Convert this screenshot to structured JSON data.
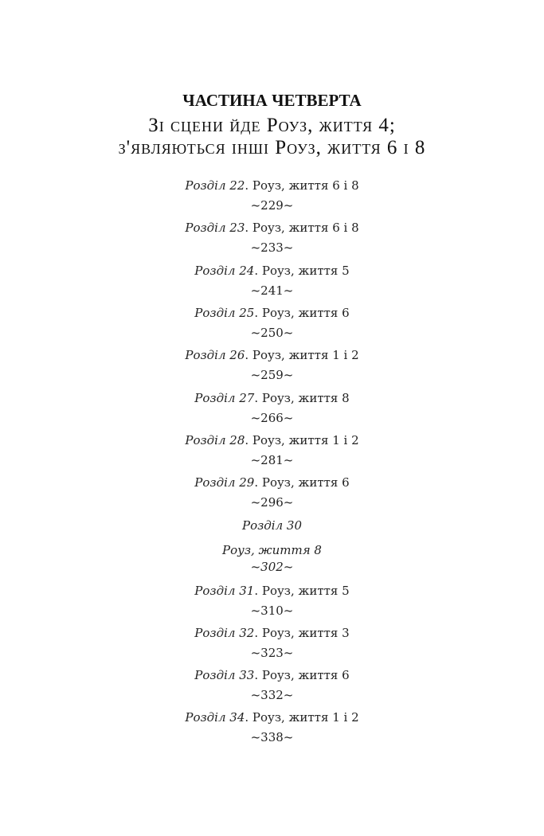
{
  "part_title": "ЧАСТИНА ЧЕТВЕРТА",
  "subtitle_lines": [
    "Зі сцени йде Роуз, життя 4;",
    "з'являються інші Роуз, життя 6 і 8"
  ],
  "entries": [
    {
      "label": "Розділ 22",
      "title": "Роуз, життя 6 і 8",
      "page": "~229~"
    },
    {
      "label": "Розділ 23",
      "title": "Роуз, життя 6 і 8",
      "page": "~233~"
    },
    {
      "label": "Розділ 24",
      "title": "Роуз, життя 5",
      "page": "~241~"
    },
    {
      "label": "Розділ 25",
      "title": "Роуз, життя 6",
      "page": "~250~"
    },
    {
      "label": "Розділ 26",
      "title": "Роуз, життя 1 і 2",
      "page": "~259~"
    },
    {
      "label": "Розділ 27",
      "title": "Роуз, життя 8",
      "page": "~266~"
    },
    {
      "label": "Розділ 28",
      "title": "Роуз, життя 1 і 2",
      "page": "~281~"
    },
    {
      "label": "Розділ 29",
      "title": "Роуз, життя 6",
      "page": "~296~"
    },
    {
      "label": "Розділ 30",
      "title": "Роуз, життя 8",
      "page": "~302~"
    },
    {
      "label": "Розділ 31",
      "title": "Роуз, життя 5",
      "page": "~310~"
    },
    {
      "label": "Розділ 32",
      "title": "Роуз, життя 3",
      "page": "~323~"
    },
    {
      "label": "Розділ 33",
      "title": "Роуз, життя 6",
      "page": "~332~"
    },
    {
      "label": "Розділ 34",
      "title": "Роуз, життя 1 і 2",
      "page": "~338~"
    }
  ]
}
